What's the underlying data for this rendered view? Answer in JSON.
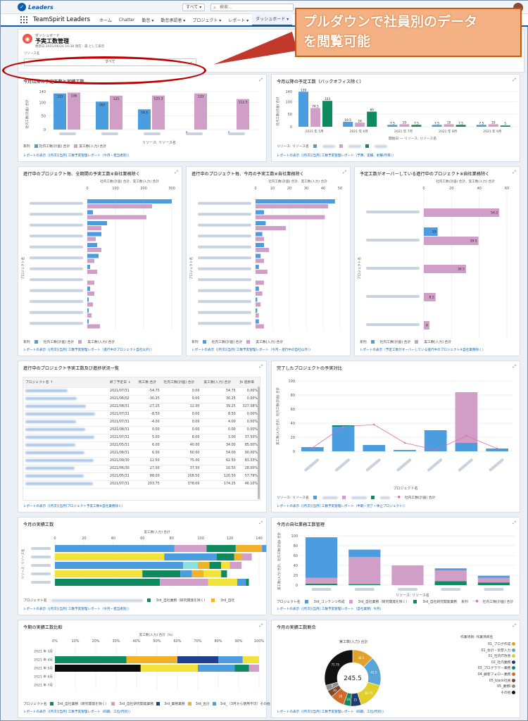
{
  "app": {
    "logo_text": "Leaders",
    "name": "TeamSpirit Leaders",
    "scope": "すべて ▾",
    "search_placeholder": "検索..."
  },
  "nav": [
    "ホーム",
    "Chatter",
    "勤怠 ▾",
    "勤怠承認者 ▾",
    "プロジェクト ▾",
    "レポート ▾",
    "ダッシュボード ▾"
  ],
  "callout": {
    "line1": "プルダウンで社員別のデータ",
    "line2": "を閲覧可能"
  },
  "header": {
    "subtitle": "ダッシュボード",
    "title": "予実工数管理",
    "updated": "更新日 2021/06/26 16:38 現在 · 森 として表示",
    "filter_label": "リソース名",
    "filter_value": "すべて"
  },
  "panels": {
    "p1": {
      "title": "今月以降の予定工数と実績工数",
      "link": "レポートの表示（[月次][当月] 工数予実管理レポート（今月・担当者別））",
      "legend_label": "系列",
      "legend": [
        "社内工数(計画) 合計",
        "実工数(入力) 合計"
      ],
      "xlabel": "リソース: リソース名",
      "ylabel": "社内工数(計画) 合計"
    },
    "p2": {
      "title": "今月以降の予定工数（バックオフィス除く）",
      "link": "レポートの表示（[月次][当月] 工数予実管理レポート（予算、実績、射撃/月単））",
      "legend_label": "リソース: リソース名",
      "xlabel": "開始日 — リソース: リソース名",
      "ylabel": "社内工数(計画) 合計"
    },
    "p3": {
      "title": "進行中のプロジェクト毎、全期間の予実工数※自社業務除く",
      "axis_title": "社内工数(計画) 合計、実工数(入力) 合計",
      "ylabel": "プロジェクト名",
      "legend_label": "系列",
      "legend": [
        "社内工数(計画) 合計",
        "実工数(入力) 合計"
      ],
      "link": "レポートの表示（[月次][当月] 工数予実管理レポート（進行中のプロジェクト自社以外））"
    },
    "p4": {
      "title": "進行中のプロジェクト毎、今月の予実工数※自社業務除く",
      "axis_title": "社内工数(計画) 合計、実工数(入力) 合計",
      "ylabel": "プロジェクト名",
      "legend_label": "系列",
      "legend": [
        "社内工数(計画) 合計",
        "実工数(入力) 合計"
      ],
      "link": "レポートの表示（[月次][当月] 工数予実管理レポート（今月・進行中の自社以外））"
    },
    "p5": {
      "title": "予定工数がオーバーしている進行中のプロジェクト※自社業務除く",
      "axis_title": "社内工数(計画) 合計、実工数(入力) 合計",
      "ylabel": "プロジェクト名",
      "legend_label": "系列",
      "legend": [
        "社内工数(計画) 合計",
        "実工数(入力) 合計"
      ],
      "link": "レポートの表示（予定工数がオーバーしている進行中のプロジェクト※自社業務除く）"
    },
    "p6": {
      "title": "進行中のプロジェクト予実工数及び進捗状況一覧",
      "columns": [
        "プロジェクト名 ↑",
        "終了予定日 ↓",
        "残工数 合計",
        "社内工数(計画) 合計",
        "実工数(入力) 合計",
        "ƒx 進捗率"
      ],
      "link": "レポートの表示（[月次][当月]プロジェクト予実工数※自社業務除く）"
    },
    "p7": {
      "title": "完了したプロジェクトの予実対比",
      "ylabel": "実工数(入力) 合計、社内工数(計画) 合計",
      "xlabel": "プロジェクト名",
      "legend_label": "リソース: リソース名",
      "legend_line": "社内工数(計画) 合計",
      "link": "レポートの表示（[月次][当月] 工数予実管理レポート（半期・完了・休止プロジェクト））"
    },
    "p8": {
      "title": "今月の実績工数",
      "axis_title": "実工数(入力) 合計",
      "ylabel": "リソース: リソース名",
      "legend_label": "プロジェクト名",
      "legend": [
        "3rd_自社業務（研究開発を除く）",
        "3rd_自社"
      ],
      "link": "レポートの表示（[月次][当月] 工数予実管理レポート（今月・担当者別））"
    },
    "p9": {
      "title": "今月の自社業務工数管理",
      "ylabel": "実工数(入力) 合計、社内工数(計画) 合計",
      "xlabel": "リソース: リソース名",
      "legend_label": "プロジェクト名",
      "legend": [
        "3rd_コンテンツ作成",
        "3rd_自社業務（研究開発を除く）",
        "3rd_自社研究開発業務"
      ],
      "legend_line_label": "系列",
      "legend_line": "社内工数(計画) 合計",
      "link": "レポートの表示（[月次][当月] 工数予実管理レポート（自社業務）今月）"
    },
    "p10": {
      "title": "今期の実績工数比較",
      "axis_title": "実工数(入力) 合計（%）",
      "rows": [
        "2021 年 3月",
        "2021 年 4月",
        "2021 年 5月",
        "2021 年 6月",
        "2021 年 7月"
      ],
      "legend_label": "プロジェクト名",
      "legend": [
        "3rd_自社業務（研究開発を除く）",
        "3rd_自社研究開発業務",
        "3rd_業務業務",
        "3rd_合計",
        "3rd_（3月から使用不可）その他"
      ],
      "link": "レポートの表示（[月次][当月] 工数予実管理レポート（四期、工位/月別））"
    },
    "p11": {
      "title": "今月の実績工数割合",
      "center_value": "245.5",
      "axis_title": "実工数(入力) 合計",
      "legend_title": "作業項目: 作業項目名",
      "legend": [
        "01_ブログ作成",
        "01_会計・伝票入力",
        "01_社内IT改善",
        "02_社内業務",
        "03_プログラマー業務",
        "04_顧客フォロー業務",
        "05_black社員",
        "05_業務I",
        "その他"
      ],
      "link": "レポートの表示（[月次][当月] 工数予実管理レポート（四期、工位/月別））"
    }
  },
  "chart_data": [
    {
      "type": "bar",
      "title": "今月以降の予定工数と実績工数",
      "ylabel": "社内工数(計画) 合計",
      "xlabel": "リソース: リソース名",
      "ylim": [
        0,
        140
      ],
      "yticks": [
        0,
        50,
        100,
        140
      ],
      "series": [
        {
          "name": "社内工数(計画) 合計",
          "values": [
            133,
            103,
            74.5,
            0,
            0
          ]
        },
        {
          "name": "実工数(入力) 合計",
          "values": [
            136,
            125,
            125.3,
            133,
            112.5
          ]
        }
      ]
    },
    {
      "type": "bar",
      "title": "今月以降の予定工数（バックオフィス除く）",
      "ylabel": "社内工数(計画) 合計",
      "xlabel": "開始日 — リソース: リソース名",
      "ylim": [
        0,
        140
      ],
      "yticks": [
        0,
        50,
        100,
        140
      ],
      "groups": [
        "2021 年 5月",
        "2021 年 6月",
        "2021 年 7月",
        "2021 年 8月",
        "2021 年 9月"
      ],
      "series": [
        {
          "values": [
            139,
            19.5,
            7.5,
            7.5,
            7.5
          ]
        },
        {
          "values": [
            74.5,
            16,
            10,
            10,
            10
          ]
        },
        {
          "values": [
            103,
            60,
            7.5,
            7.5,
            5
          ]
        }
      ]
    },
    {
      "type": "bar",
      "title": "進行中のプロジェクト毎、全期間の予実工数※自社業務除く",
      "xlim": [
        0,
        300
      ],
      "xticks": [
        0,
        100,
        200,
        300
      ],
      "series": [
        {
          "name": "社内工数(計画) 合計",
          "values": [
            300,
            20,
            70,
            50,
            35,
            40,
            10,
            0,
            10,
            5,
            5,
            5
          ]
        },
        {
          "name": "実工数(入力) 合計",
          "values": [
            230,
            210,
            50,
            30,
            50,
            25,
            35,
            25,
            25,
            20,
            15,
            45
          ]
        }
      ]
    },
    {
      "type": "bar",
      "title": "進行中のプロジェクト毎、今月の予実工数※自社業務除く",
      "xlim": [
        0,
        50
      ],
      "xticks": [
        0,
        10,
        20,
        30,
        40,
        50
      ],
      "series": [
        {
          "name": "社内工数(計画) 合計",
          "values": [
            47,
            5,
            6,
            4,
            5,
            3,
            2,
            0,
            2,
            1,
            1,
            2
          ]
        },
        {
          "name": "実工数(入力) 合計",
          "values": [
            43,
            41,
            18,
            5,
            8,
            5,
            7,
            5,
            4,
            3,
            2,
            5
          ]
        }
      ]
    },
    {
      "type": "bar",
      "title": "予定工数がオーバーしている進行中のプロジェクト※自社業務除く",
      "xlim": [
        0,
        60
      ],
      "xticks": [
        0,
        20,
        40,
        60
      ],
      "series": [
        {
          "name": "社内工数(計画) 合計",
          "values": [
            0,
            10,
            0,
            0,
            0
          ]
        },
        {
          "name": "実工数(入力) 合計",
          "values": [
            54.5,
            39.5,
            30.5,
            8.5,
            4
          ]
        }
      ],
      "labels": [
        "54.5",
        "39.5",
        "30.5",
        "8.5",
        "4"
      ],
      "plan_labels": [
        "",
        "10",
        "",
        "",
        ""
      ]
    },
    {
      "type": "table",
      "title": "進行中のプロジェクト予実工数及び進捗状況一覧",
      "rows": [
        [
          "2021/07/31",
          "-54.75",
          "0.00",
          "54.75",
          "0.00%"
        ],
        [
          "2021/06/02",
          "-30.25",
          "0.00",
          "30.25",
          "0.00%"
        ],
        [
          "2021/08/31",
          "-27.25",
          "12.00",
          "39.25",
          "327.08%"
        ],
        [
          "2021/07/31",
          "-8.50",
          "0.00",
          "8.50",
          "0.00%"
        ],
        [
          "2021/07/31",
          "-4.00",
          "0.00",
          "4.00",
          "0.00%"
        ],
        [
          "2021/08/31",
          "0.00",
          "0.00",
          "0.00",
          "0.00%"
        ],
        [
          "2021/07/31",
          "5.00",
          "8.00",
          "3.00",
          "37.50%"
        ],
        [
          "2021/05/31",
          "6.00",
          "40.00",
          "34.00",
          "85.00%"
        ],
        [
          "2021/06/31",
          "6.00",
          "60.00",
          "54.00",
          "90.00%"
        ],
        [
          "2021/09/30",
          "12.50",
          "75.00",
          "62.50",
          "83.33%"
        ],
        [
          "2021/06/30",
          "27.00",
          "37.50",
          "10.50",
          "28.00%"
        ],
        [
          "2021/05/31",
          "88.00",
          "208.50",
          "120.50",
          "57.79%"
        ],
        [
          "2021/07/31",
          "203.75",
          "378.00",
          "174.25",
          "46.10%"
        ]
      ]
    },
    {
      "type": "bar",
      "title": "完了したプロジェクトの予実対比",
      "ylim": [
        0,
        100
      ],
      "yticks": [
        0,
        20,
        40,
        60,
        80,
        100
      ],
      "series": [
        {
          "name": "blue",
          "values": [
            6,
            35,
            9,
            2,
            30,
            12,
            4
          ]
        },
        {
          "name": "pink",
          "values": [
            0,
            0,
            0,
            0,
            0,
            72,
            0
          ]
        },
        {
          "name": "green",
          "values": [
            0,
            2,
            0,
            0,
            0,
            0,
            0
          ]
        }
      ],
      "line": {
        "name": "社内工数(計画) 合計",
        "values": [
          5,
          35,
          38,
          12,
          2,
          22,
          4
        ]
      }
    },
    {
      "type": "bar",
      "title": "今月の実績工数",
      "xlim": [
        0,
        140
      ],
      "xticks": [
        0,
        20,
        40,
        60,
        80,
        100,
        120,
        140
      ],
      "rows": [
        [
          {
            "c": "#4c9ce0",
            "v": 82
          },
          {
            "c": "#d19ec7",
            "v": 22
          },
          {
            "c": "#0f8a5f",
            "v": 20
          },
          {
            "c": "#f2b227",
            "v": 18
          },
          {
            "c": "#4c9ce0",
            "v": 3
          }
        ],
        [
          {
            "c": "#f2e33b",
            "v": 75
          },
          {
            "c": "#4c9ce0",
            "v": 36
          },
          {
            "c": "#0f8a5f",
            "v": 12
          },
          {
            "c": "#f2b227",
            "v": 5
          },
          {
            "c": "#d19ec7",
            "v": 7
          }
        ],
        [
          {
            "c": "#4c9ce0",
            "v": 88
          },
          {
            "c": "#8ce0e0",
            "v": 10
          },
          {
            "c": "#f2b227",
            "v": 8
          },
          {
            "c": "#0f8a5f",
            "v": 8
          },
          {
            "c": "#f2e33b",
            "v": 6
          },
          {
            "c": "#d19ec7",
            "v": 8
          }
        ],
        [
          {
            "c": "#f2e33b",
            "v": 60
          },
          {
            "c": "#0f8a5f",
            "v": 26
          },
          {
            "c": "#4c9ce0",
            "v": 8
          },
          {
            "c": "#f2b227",
            "v": 8
          },
          {
            "c": "#f2e33b",
            "v": 12
          },
          {
            "c": "#0f8a5f",
            "v": 4
          }
        ],
        [
          {
            "c": "#0f8a5f",
            "v": 72
          },
          {
            "c": "#d19ec7",
            "v": 33
          },
          {
            "c": "#f2e33b",
            "v": 20
          },
          {
            "c": "#4c9ce0",
            "v": 6
          },
          {
            "c": "#0f8a5f",
            "v": 2
          }
        ]
      ]
    },
    {
      "type": "bar",
      "title": "今月の自社業務工数管理",
      "stacks": [
        [
          {
            "c": "#0f8a5f",
            "v": 3
          },
          {
            "c": "#d19ec7",
            "v": 12
          },
          {
            "c": "#4c9ce0",
            "v": 82
          }
        ],
        [
          {
            "c": "#0f8a5f",
            "v": 2
          },
          {
            "c": "#d19ec7",
            "v": 55
          },
          {
            "c": "#4c9ce0",
            "v": 15
          }
        ],
        [
          {
            "c": "#d19ec7",
            "v": 40
          }
        ],
        [
          {
            "c": "#0f8a5f",
            "v": 8
          },
          {
            "c": "#d19ec7",
            "v": 22
          },
          {
            "c": "#4c9ce0",
            "v": 4
          }
        ],
        [
          {
            "c": "#0f8a5f",
            "v": 5
          },
          {
            "c": "#d19ec7",
            "v": 10
          },
          {
            "c": "#4c9ce0",
            "v": 4
          }
        ]
      ]
    },
    {
      "type": "bar",
      "title": "今期の実績工数比較",
      "xlim": [
        0,
        100
      ],
      "xticks": [
        0,
        10,
        20,
        30,
        40,
        50,
        60,
        70,
        80,
        90,
        100
      ],
      "rows": [
        [],
        [
          {
            "c": "#0f8a5f",
            "v": 35
          },
          {
            "c": "#f2b227",
            "v": 25
          },
          {
            "c": "#1e3f8a",
            "v": 20
          },
          {
            "c": "#4c9ce0",
            "v": 12
          },
          {
            "c": "#f2e33b",
            "v": 8
          }
        ],
        [
          {
            "c": "#0b0b0b",
            "v": 42
          },
          {
            "c": "#f2e33b",
            "v": 28
          },
          {
            "c": "#4c9ce0",
            "v": 18
          },
          {
            "c": "#0f8a5f",
            "v": 7
          },
          {
            "c": "#d19ec7",
            "v": 5
          }
        ],
        [],
        []
      ]
    },
    {
      "type": "pie",
      "title": "今月の実績工数割合",
      "total": 245.5,
      "slices": [
        {
          "c": "#e0a22a",
          "v": 30.5
        },
        {
          "c": "#5aa6d8",
          "v": 41.5
        },
        {
          "c": "#e0cf2a",
          "v": 38.75
        },
        {
          "c": "#1f3a70",
          "v": 15
        },
        {
          "c": "#0f8a5f",
          "v": 10
        },
        {
          "c": "#d06a2a",
          "v": 20
        },
        {
          "c": "#7a4a2a",
          "v": 10
        },
        {
          "c": "#8e8e8e",
          "v": 8
        },
        {
          "c": "#111111",
          "v": 71.75
        }
      ],
      "labels": [
        "30.5",
        "41.5",
        "38.75",
        "15",
        "10",
        "20",
        "10",
        "8",
        "71.75"
      ]
    }
  ]
}
